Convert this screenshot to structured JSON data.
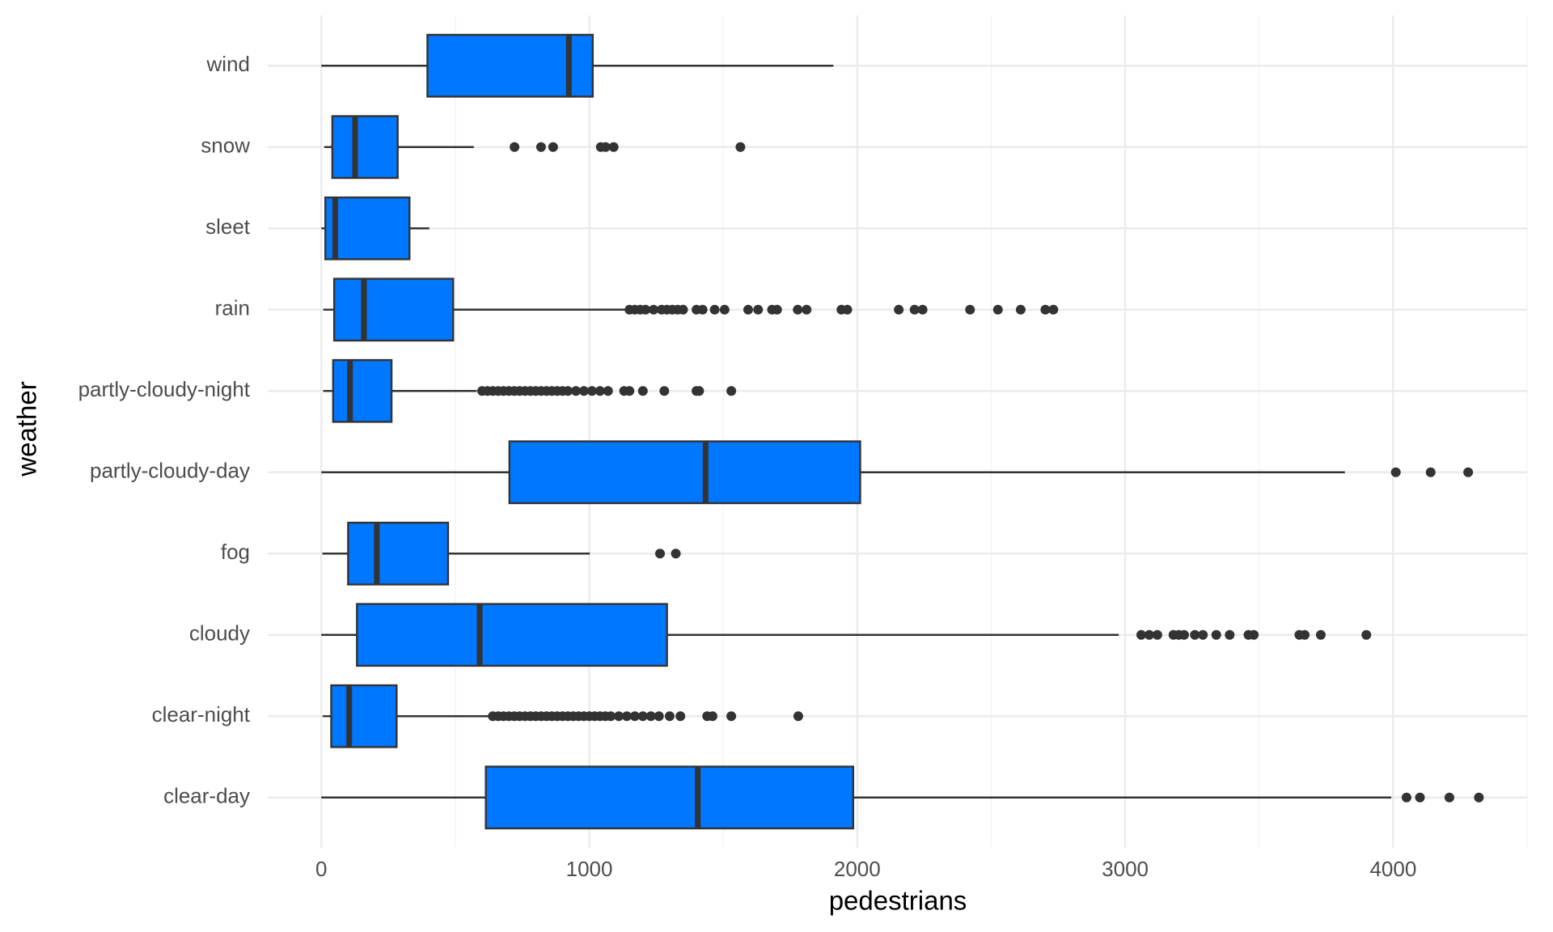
{
  "chart_data": {
    "type": "boxplot",
    "xlabel": "pedestrians",
    "ylabel": "weather",
    "categories": [
      "clear-day",
      "clear-night",
      "cloudy",
      "fog",
      "partly-cloudy-day",
      "partly-cloudy-night",
      "rain",
      "sleet",
      "snow",
      "wind"
    ],
    "boxes": [
      {
        "whisker_low": 0,
        "q1": 614,
        "median": 1405,
        "q3": 1985,
        "whisker_high": 3993,
        "outliers": [
          4050,
          4100,
          4210,
          4320
        ]
      },
      {
        "whisker_low": 5,
        "q1": 37,
        "median": 104,
        "q3": 281,
        "whisker_high": 625,
        "outliers": [
          640,
          660,
          680,
          700,
          720,
          740,
          760,
          780,
          800,
          820,
          840,
          860,
          880,
          900,
          920,
          940,
          960,
          980,
          1000,
          1020,
          1040,
          1060,
          1080,
          1110,
          1140,
          1170,
          1200,
          1230,
          1260,
          1300,
          1340,
          1440,
          1460,
          1530,
          1780
        ]
      },
      {
        "whisker_low": 0,
        "q1": 133,
        "median": 591,
        "q3": 1290,
        "whisker_high": 2976,
        "outliers": [
          3060,
          3090,
          3120,
          3180,
          3200,
          3220,
          3260,
          3290,
          3340,
          3390,
          3460,
          3480,
          3650,
          3670,
          3730,
          3900
        ]
      },
      {
        "whisker_low": 4,
        "q1": 100,
        "median": 207,
        "q3": 473,
        "whisker_high": 1002,
        "outliers": [
          1264,
          1323
        ]
      },
      {
        "whisker_low": 0,
        "q1": 702,
        "median": 1434,
        "q3": 2011,
        "whisker_high": 3820,
        "outliers": [
          4010,
          4140,
          4280
        ]
      },
      {
        "whisker_low": 7,
        "q1": 44,
        "median": 107,
        "q3": 262,
        "whisker_high": 580,
        "outliers": [
          600,
          620,
          640,
          660,
          680,
          700,
          720,
          740,
          760,
          780,
          800,
          820,
          840,
          860,
          880,
          900,
          920,
          950,
          980,
          1010,
          1040,
          1070,
          1130,
          1150,
          1200,
          1280,
          1400,
          1410,
          1530
        ]
      },
      {
        "whisker_low": 7,
        "q1": 48,
        "median": 159,
        "q3": 492,
        "whisker_high": 1135,
        "outliers": [
          1150,
          1170,
          1190,
          1210,
          1240,
          1270,
          1290,
          1310,
          1330,
          1350,
          1400,
          1423,
          1468,
          1505,
          1593,
          1630,
          1682,
          1701,
          1778,
          1811,
          1941,
          1963,
          2155,
          2214,
          2244,
          2421,
          2525,
          2610,
          2702,
          2732
        ]
      },
      {
        "whisker_low": 0,
        "q1": 15,
        "median": 52,
        "q3": 329,
        "whisker_high": 403,
        "outliers": []
      },
      {
        "whisker_low": 11,
        "q1": 41,
        "median": 126,
        "q3": 285,
        "whisker_high": 569,
        "outliers": [
          721,
          820,
          865,
          1043,
          1061,
          1091,
          1564
        ]
      },
      {
        "whisker_low": 0,
        "q1": 396,
        "median": 924,
        "q3": 1013,
        "whisker_high": 1911,
        "outliers": []
      }
    ],
    "color": "#0077ff",
    "xlim": [
      -200,
      4500
    ],
    "xticks": [
      0,
      1000,
      2000,
      3000,
      4000
    ],
    "minor_xticks": [
      500,
      1500,
      2500,
      3500,
      4500
    ],
    "grid": true
  }
}
